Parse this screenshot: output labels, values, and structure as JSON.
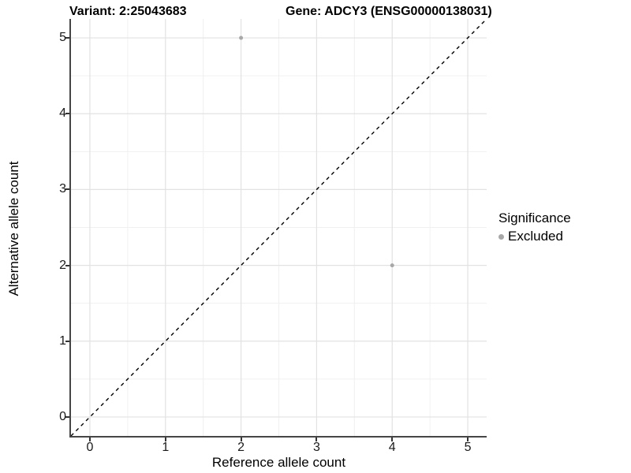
{
  "titles": {
    "variant": "Variant: 2:25043683",
    "gene": "Gene: ADCY3 (ENSG00000138031)"
  },
  "chart_data": {
    "type": "scatter",
    "title_left": "Variant: 2:25043683",
    "title_right": "Gene: ADCY3 (ENSG00000138031)",
    "xlabel": "Reference allele count",
    "ylabel": "Alternative allele count",
    "xlim": [
      0,
      5
    ],
    "ylim": [
      0,
      5
    ],
    "axis_expansion": 0.25,
    "xticks": [
      0,
      1,
      2,
      3,
      4,
      5
    ],
    "yticks": [
      0,
      1,
      2,
      3,
      4,
      5
    ],
    "minor_gridlines": [
      0.5,
      1.5,
      2.5,
      3.5,
      4.5
    ],
    "grid": {
      "major_color": "#e2e2e2",
      "minor_color": "#f0f0f0",
      "background": "#ffffff"
    },
    "identity_line": {
      "show": true,
      "style": "dashed",
      "color": "#000000"
    },
    "series": [
      {
        "name": "Excluded",
        "color": "#a8a8a8",
        "points": [
          {
            "x": 2,
            "y": 5
          },
          {
            "x": 4,
            "y": 2
          }
        ]
      }
    ],
    "legend": {
      "title": "Significance",
      "position": "right",
      "items": [
        {
          "label": "Excluded",
          "color": "#a8a8a8"
        }
      ]
    }
  }
}
